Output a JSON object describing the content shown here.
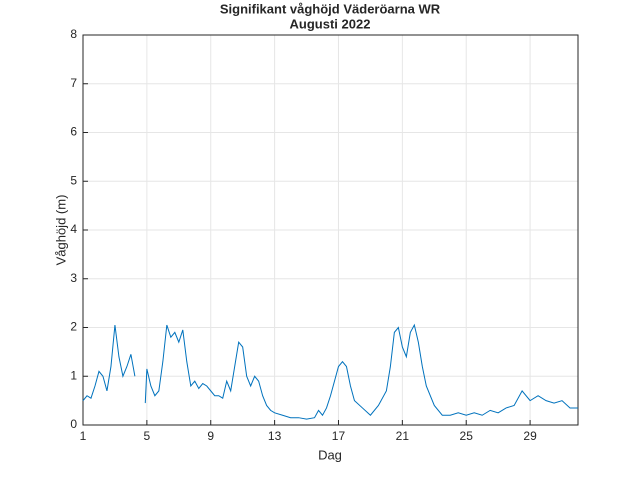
{
  "chart_data": {
    "type": "line",
    "title": "Signifikant våghöjd Väderöarna WR",
    "subtitle": "Augusti 2022",
    "x_label": "Dag",
    "y_label": "Våghöjd (m)",
    "xlim": [
      1,
      32
    ],
    "xticks": [
      1,
      5,
      9,
      13,
      17,
      21,
      25,
      29
    ],
    "ylim": [
      0,
      8
    ],
    "yticks": [
      0,
      1,
      2,
      3,
      4,
      5,
      6,
      7,
      8
    ],
    "grid": true,
    "series": [
      {
        "color": "#0072bd",
        "x": [
          1,
          1.25,
          1.5,
          1.75,
          2,
          2.25,
          2.5,
          2.75,
          3,
          3.25,
          3.5,
          3.75,
          4,
          4.25,
          4.5,
          4.9,
          5,
          5.25,
          5.5,
          5.75,
          6,
          6.25,
          6.5,
          6.75,
          7,
          7.25,
          7.5,
          7.75,
          8,
          8.25,
          8.5,
          8.75,
          9,
          9.25,
          9.5,
          9.75,
          10,
          10.25,
          10.5,
          10.75,
          11,
          11.25,
          11.5,
          11.75,
          12,
          12.25,
          12.5,
          12.75,
          13,
          13.5,
          14,
          14.5,
          15,
          15.5,
          15.75,
          16,
          16.25,
          16.5,
          16.75,
          17,
          17.25,
          17.5,
          17.75,
          18,
          18.5,
          19,
          19.5,
          20,
          20.25,
          20.5,
          20.75,
          21,
          21.25,
          21.5,
          21.75,
          22,
          22.25,
          22.5,
          23,
          23.5,
          24,
          24.5,
          25,
          25.5,
          26,
          26.5,
          27,
          27.5,
          28,
          28.5,
          29,
          29.5,
          30,
          30.5,
          31,
          31.5,
          32
        ],
        "values": [
          0.5,
          0.6,
          0.55,
          0.8,
          1.1,
          1.0,
          0.7,
          1.2,
          2.05,
          1.4,
          1.0,
          1.2,
          1.45,
          1.0,
          null,
          0.45,
          1.15,
          0.8,
          0.6,
          0.7,
          1.3,
          2.05,
          1.8,
          1.9,
          1.7,
          1.95,
          1.3,
          0.8,
          0.9,
          0.75,
          0.85,
          0.8,
          0.7,
          0.6,
          0.6,
          0.55,
          0.9,
          0.7,
          1.2,
          1.7,
          1.6,
          1.0,
          0.8,
          1.0,
          0.9,
          0.6,
          0.4,
          0.3,
          0.25,
          0.2,
          0.15,
          0.15,
          0.12,
          0.15,
          0.3,
          0.2,
          0.35,
          0.6,
          0.9,
          1.2,
          1.3,
          1.2,
          0.8,
          0.5,
          0.35,
          0.2,
          0.4,
          0.7,
          1.2,
          1.9,
          2.0,
          1.6,
          1.4,
          1.9,
          2.05,
          1.7,
          1.2,
          0.8,
          0.4,
          0.2,
          0.2,
          0.25,
          0.2,
          0.25,
          0.2,
          0.3,
          0.25,
          0.35,
          0.4,
          0.7,
          0.5,
          0.6,
          0.5,
          0.45,
          0.5,
          0.35,
          0.35
        ]
      }
    ]
  }
}
